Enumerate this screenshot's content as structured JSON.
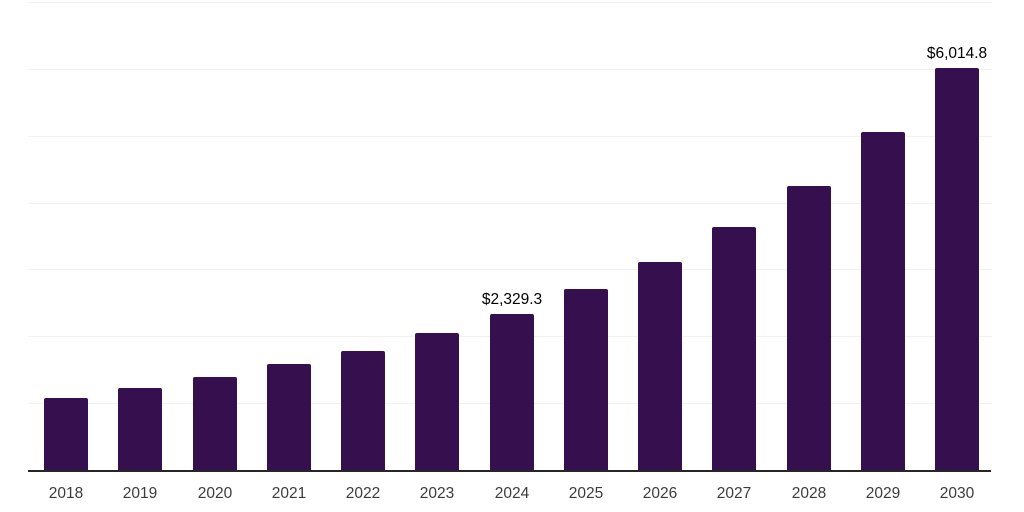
{
  "chart_data": {
    "type": "bar",
    "title": "",
    "xlabel": "",
    "ylabel": "",
    "categories": [
      "2018",
      "2019",
      "2020",
      "2021",
      "2022",
      "2023",
      "2024",
      "2025",
      "2026",
      "2027",
      "2028",
      "2029",
      "2030"
    ],
    "values": [
      1075,
      1220,
      1385,
      1580,
      1780,
      2055,
      2329.3,
      2700,
      3110,
      3640,
      4255,
      5050,
      6014.8
    ],
    "value_labels": [
      "",
      "",
      "",
      "",
      "",
      "",
      "$2,329.3",
      "",
      "",
      "",
      "",
      "",
      "$6,014.8"
    ],
    "labeled_points": [
      {
        "category": "2024",
        "label": "$2,329.3"
      },
      {
        "category": "2030",
        "label": "$6,014.8"
      }
    ],
    "ylim": [
      0,
      7000
    ],
    "gridline_interval": 1000,
    "grid": true,
    "legend": false,
    "y_axis_tick_labels_visible": false,
    "colors": {
      "bar": "#36104E",
      "gridline": "#f1f1f1",
      "axis_line": "#262626",
      "tick_text": "#3c3c3c",
      "value_label_text": "#000000",
      "background": "#ffffff"
    }
  }
}
